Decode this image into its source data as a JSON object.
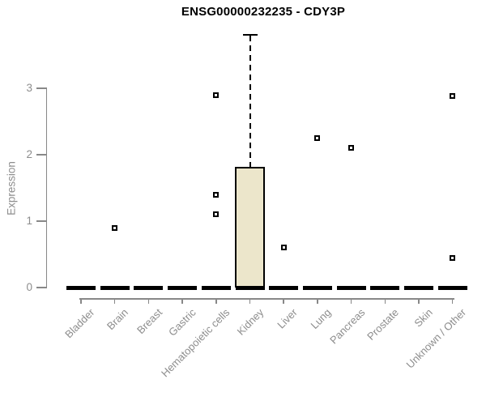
{
  "chart_data": {
    "type": "boxplot",
    "title": "ENSG00000232235 - CDY3P",
    "ylabel": "Expression",
    "xlabel": "",
    "ylim": [
      0,
      3.9
    ],
    "yticks": [
      0,
      1,
      2,
      3
    ],
    "grid": false,
    "legend": false,
    "categories": [
      "Bladder",
      "Brain",
      "Breast",
      "Gastric",
      "Hematopoietic cells",
      "Kidney",
      "Liver",
      "Lung",
      "Pancreas",
      "Prostate",
      "Skin",
      "Unknown / Other"
    ],
    "boxes": [
      {
        "category": "Bladder",
        "median": 0
      },
      {
        "category": "Brain",
        "median": 0
      },
      {
        "category": "Breast",
        "median": 0
      },
      {
        "category": "Gastric",
        "median": 0
      },
      {
        "category": "Hematopoietic cells",
        "median": 0
      },
      {
        "category": "Kidney",
        "median": 0,
        "q1": 0,
        "q3": 1.82,
        "whisker_low": 0,
        "whisker_high": 3.82
      },
      {
        "category": "Liver",
        "median": 0
      },
      {
        "category": "Lung",
        "median": 0
      },
      {
        "category": "Pancreas",
        "median": 0
      },
      {
        "category": "Prostate",
        "median": 0
      },
      {
        "category": "Skin",
        "median": 0
      },
      {
        "category": "Unknown / Other",
        "median": 0
      }
    ],
    "outliers": [
      {
        "category": "Brain",
        "value": 0.9
      },
      {
        "category": "Hematopoietic cells",
        "value": 2.9
      },
      {
        "category": "Hematopoietic cells",
        "value": 1.4
      },
      {
        "category": "Hematopoietic cells",
        "value": 1.1
      },
      {
        "category": "Liver",
        "value": 0.6
      },
      {
        "category": "Lung",
        "value": 2.25
      },
      {
        "category": "Pancreas",
        "value": 2.1
      },
      {
        "category": "Unknown / Other",
        "value": 2.88
      },
      {
        "category": "Unknown / Other",
        "value": 0.45
      }
    ],
    "colors": {
      "box_fill": "#ECE6CB",
      "box_border": "#000000",
      "axis": "#888888",
      "tick_label": "#8d8d8d",
      "title": "#000000",
      "background": "#ffffff"
    }
  }
}
